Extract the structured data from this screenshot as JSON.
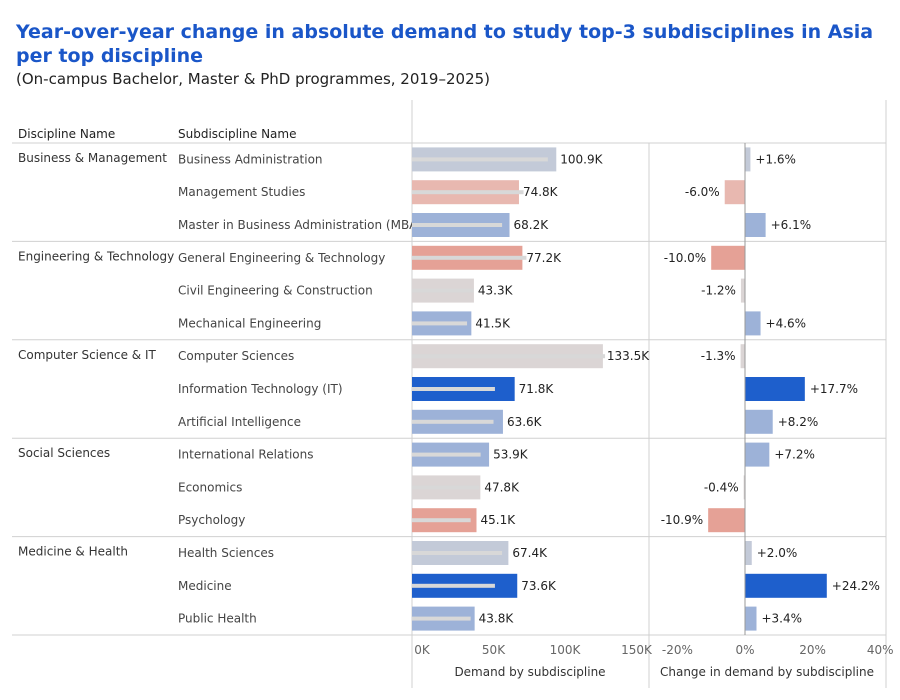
{
  "title_line1": "Year-over-year change in absolute demand to study top-3 subdisciplines in Asia",
  "title_line2": "per top discipline",
  "subtitle": "(On-campus Bachelor, Master & PhD programmes, 2019–2025)",
  "headers": {
    "discipline": "Discipline Name",
    "subdiscipline": "Subdiscipline Name"
  },
  "colors": {
    "title": "#1a56c8",
    "strong_pos": "#1e5fcc",
    "mid_pos": "#4f7fd0",
    "light_pos": "#9db2d8",
    "pale_pos": "#c3cad8",
    "neutral": "#dbd5d5",
    "light_neg": "#e8b8b0",
    "neg": "#e5a196",
    "inner_bar": "#d8d8d8",
    "grid": "#d0d0d0"
  },
  "chart_data": [
    {
      "type": "bar",
      "orientation": "horizontal",
      "xlabel": "Demand by subdiscipline",
      "xlim": [
        0,
        160000
      ],
      "xticks": [
        0,
        50000,
        100000,
        150000
      ],
      "xtick_labels": [
        "0K",
        "50K",
        "100K",
        "150K"
      ],
      "categories": [
        "Business Administration",
        "Management Studies",
        "Master in Business Administration (MBA)",
        "General Engineering & Technology",
        "Civil Engineering & Construction",
        "Mechanical Engineering",
        "Computer Sciences",
        "Information Technology (IT)",
        "Artificial Intelligence",
        "International Relations",
        "Economics",
        "Psychology",
        "Health Sciences",
        "Medicine",
        "Public Health"
      ],
      "values": [
        100900,
        74800,
        68200,
        77200,
        43300,
        41500,
        133500,
        71800,
        63600,
        53900,
        47800,
        45100,
        67400,
        73600,
        43800
      ],
      "value_labels": [
        "100.9K",
        "74.8K",
        "68.2K",
        "77.2K",
        "43.3K",
        "41.5K",
        "133.5K",
        "71.8K",
        "63.6K",
        "53.9K",
        "47.8K",
        "45.1K",
        "67.4K",
        "73.6K",
        "43.8K"
      ]
    },
    {
      "type": "bar",
      "orientation": "horizontal",
      "xlabel": "Change in demand by subdiscipline",
      "xlim": [
        -20,
        40
      ],
      "xticks": [
        -20,
        0,
        20,
        40
      ],
      "xtick_labels": [
        "-20%",
        "0%",
        "20%",
        "40%"
      ],
      "categories": [
        "Business Administration",
        "Management Studies",
        "Master in Business Administration (MBA)",
        "General Engineering & Technology",
        "Civil Engineering & Construction",
        "Mechanical Engineering",
        "Computer Sciences",
        "Information Technology (IT)",
        "Artificial Intelligence",
        "International Relations",
        "Economics",
        "Psychology",
        "Health Sciences",
        "Medicine",
        "Public Health"
      ],
      "values": [
        1.6,
        -6.0,
        6.1,
        -10.0,
        -1.2,
        4.6,
        -1.3,
        17.7,
        8.2,
        7.2,
        -0.4,
        -10.9,
        2.0,
        24.2,
        3.4
      ],
      "value_labels": [
        "+1.6%",
        "-6.0%",
        "+6.1%",
        "-10.0%",
        "-1.2%",
        "+4.6%",
        "-1.3%",
        "+17.7%",
        "+8.2%",
        "+7.2%",
        "-0.4%",
        "-10.9%",
        "+2.0%",
        "+24.2%",
        "+3.4%"
      ]
    }
  ],
  "disciplines": [
    {
      "name": "Business & Management",
      "rows": [
        0,
        1,
        2
      ]
    },
    {
      "name": "Engineering & Technology",
      "rows": [
        3,
        4,
        5
      ]
    },
    {
      "name": "Computer Science & IT",
      "rows": [
        6,
        7,
        8
      ]
    },
    {
      "name": "Social Sciences",
      "rows": [
        9,
        10,
        11
      ]
    },
    {
      "name": "Medicine & Health",
      "rows": [
        12,
        13,
        14
      ]
    }
  ],
  "inner_bars": [
    95000,
    78000,
    63000,
    80000,
    43000,
    38500,
    135000,
    58000,
    57000,
    48000,
    47000,
    41000,
    63000,
    58000,
    41000
  ]
}
